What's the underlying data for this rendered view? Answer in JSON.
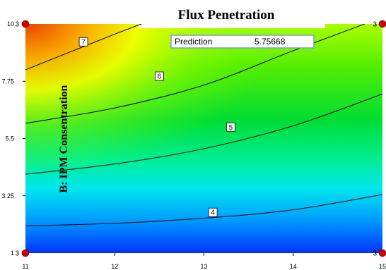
{
  "chart_data": {
    "type": "contour",
    "title": "Flux Penetration",
    "ylabel": "B: IPM Consentration",
    "xlabel": "",
    "xlim": [
      11,
      15
    ],
    "ylim": [
      1,
      10
    ],
    "xticks": [
      "11",
      "12",
      "13",
      "14",
      "15"
    ],
    "yticks": [
      "1",
      "3.25",
      "5.5",
      "7.75",
      "10"
    ],
    "contours": [
      {
        "level": "4",
        "points": [
          [
            11,
            2.07
          ],
          [
            12,
            2.17
          ],
          [
            13,
            2.37
          ],
          [
            14,
            2.7
          ],
          [
            15,
            3.3
          ]
        ],
        "label_at": [
          13.1,
          2.6
        ]
      },
      {
        "level": "5",
        "points": [
          [
            11,
            4.1
          ],
          [
            12,
            4.5
          ],
          [
            13,
            5.1
          ],
          [
            14,
            6.0
          ],
          [
            15,
            7.25
          ]
        ],
        "label_at": [
          13.3,
          5.95
        ]
      },
      {
        "level": "6",
        "points": [
          [
            11,
            6.1
          ],
          [
            12,
            6.7
          ],
          [
            13,
            7.6
          ],
          [
            14,
            8.95
          ],
          [
            14.8,
            10
          ]
        ],
        "label_at": [
          12.5,
          7.95
        ]
      },
      {
        "level": "7",
        "points": [
          [
            11,
            8.2
          ],
          [
            11.5,
            8.9
          ],
          [
            12,
            9.6
          ],
          [
            12.3,
            10
          ]
        ],
        "label_at": [
          11.65,
          9.3
        ]
      }
    ],
    "design_points": [
      {
        "x": 11,
        "y": 10,
        "label": "3"
      },
      {
        "x": 15,
        "y": 10,
        "label": "3"
      },
      {
        "x": 11,
        "y": 1,
        "label": "3"
      },
      {
        "x": 15,
        "y": 1,
        "label": "3"
      }
    ],
    "prediction": {
      "label": "Prediction",
      "value": "5.75668"
    },
    "colors": {
      "high": "#ee3300",
      "mid_high": "#ffff00",
      "mid": "#00dd44",
      "mid_low": "#00ffcc",
      "low": "#0044ff",
      "design_point": "#cc0000"
    }
  }
}
